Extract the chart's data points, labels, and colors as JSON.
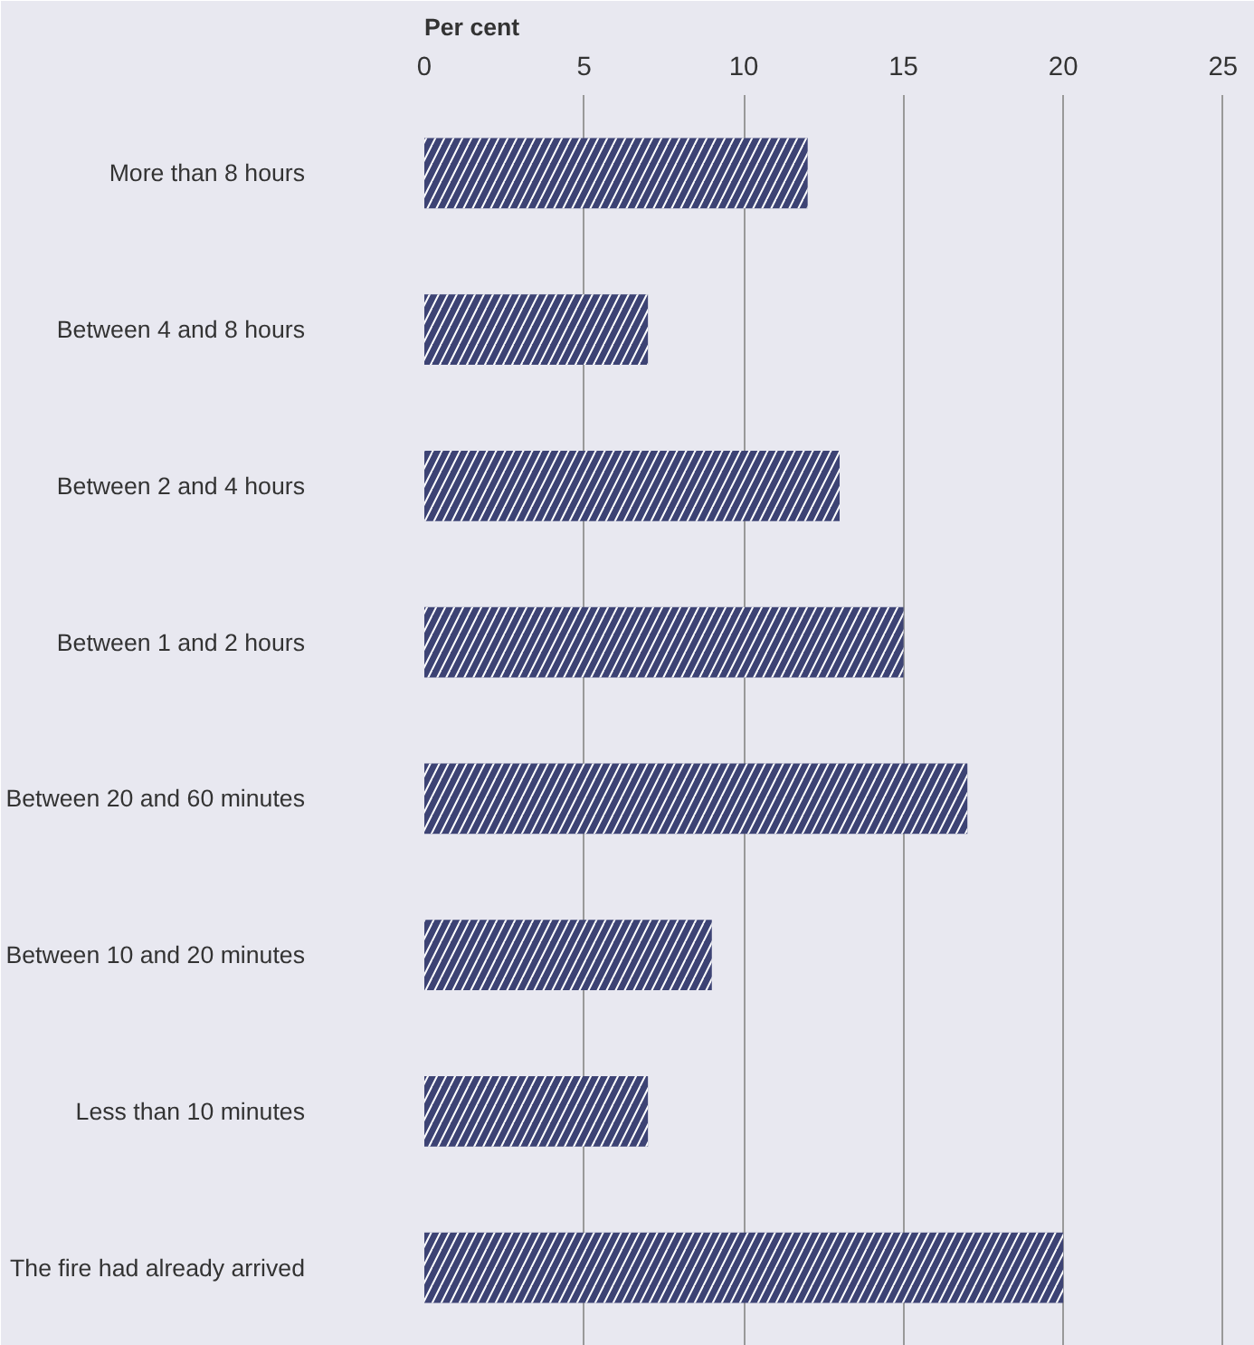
{
  "chart_data": {
    "type": "bar",
    "orientation": "horizontal",
    "xlabel": "Per cent",
    "categories": [
      "More than 8 hours",
      "Between 4 and 8 hours",
      "Between 2 and 4 hours",
      "Between 1 and 2 hours",
      "Between 20 and 60 minutes",
      "Between 10 and 20 minutes",
      "Less than 10 minutes",
      "The fire had already arrived"
    ],
    "values": [
      12,
      7,
      13,
      15,
      17,
      9,
      7,
      20
    ],
    "color": "#3d4374",
    "xlim": [
      0,
      26
    ],
    "xticks": [
      0,
      5,
      10,
      15,
      20,
      25
    ],
    "grid": "x"
  }
}
